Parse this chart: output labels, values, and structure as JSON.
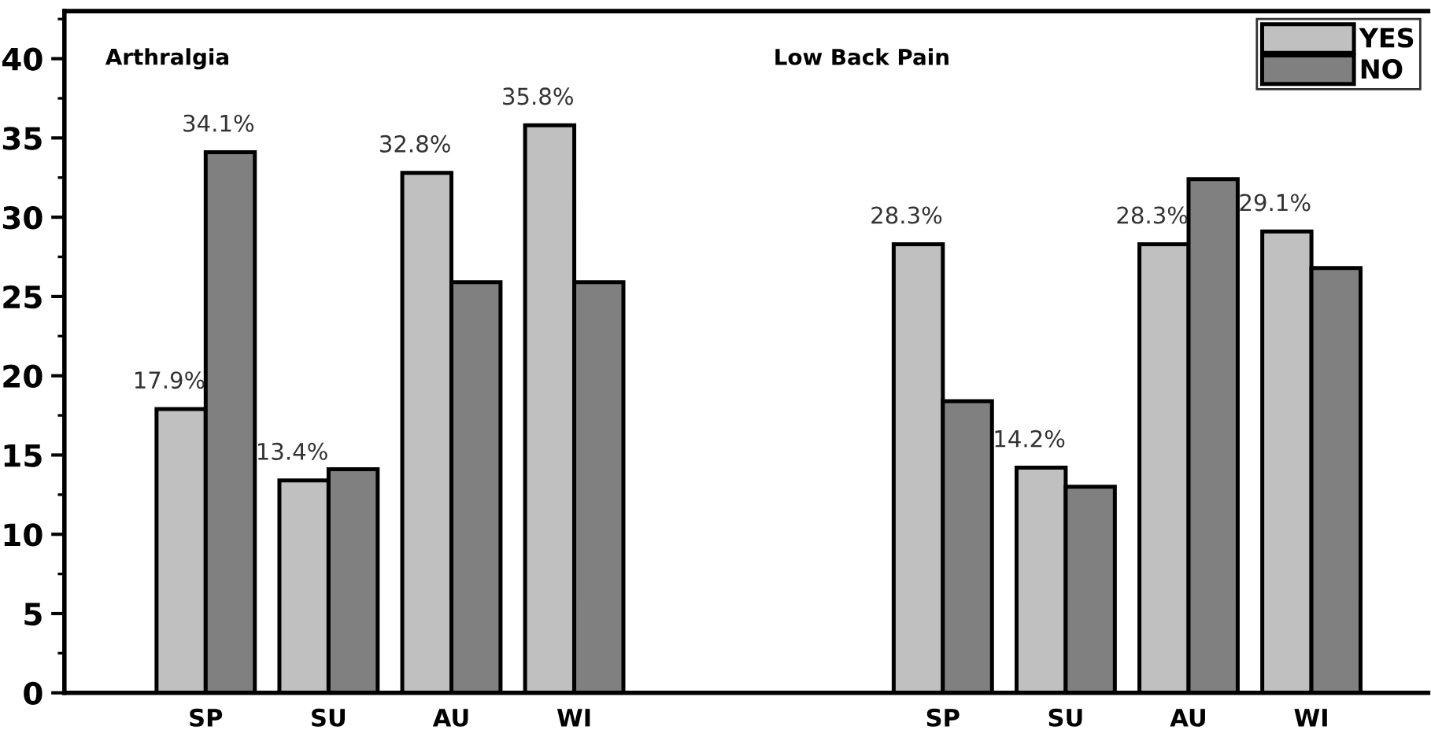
{
  "chart_data": {
    "type": "bar",
    "categories": [
      "SP",
      "SU",
      "AU",
      "WI",
      null,
      null,
      "SP",
      "SU",
      "AU",
      "WI"
    ],
    "series": [
      {
        "name": "YES",
        "color": "#c0c0c0",
        "values": [
          17.9,
          13.4,
          32.8,
          35.8,
          null,
          null,
          28.3,
          14.2,
          28.3,
          29.1
        ],
        "value_labels": [
          "17.9%",
          "13.4%",
          "32.8%",
          "35.8%",
          null,
          null,
          "28.3%",
          "14.2%",
          "28.3%",
          "29.1%"
        ]
      },
      {
        "name": "NO",
        "color": "#808080",
        "values": [
          34.1,
          14.1,
          25.9,
          25.9,
          null,
          null,
          18.4,
          13.0,
          32.4,
          26.8
        ],
        "value_labels": [
          "34.1%",
          null,
          null,
          null,
          null,
          null,
          null,
          null,
          null,
          null
        ]
      }
    ],
    "annotations": [
      "Arthralgia",
      "Low Back Pain"
    ],
    "ylim": [
      0,
      43
    ],
    "yticks": [
      0,
      5,
      10,
      15,
      20,
      25,
      30,
      35,
      40
    ],
    "grid": false,
    "legend": "top right"
  }
}
